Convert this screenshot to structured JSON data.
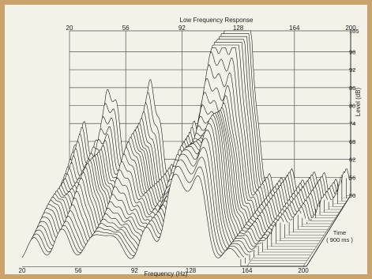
{
  "chart_data": {
    "type": "waterfall",
    "title": "Low Frequency Response",
    "xlabel": "Frequency (Hz)",
    "ylabel": "Level (dB)",
    "zlabel": "Time",
    "zsublabel": "( 900 ms )",
    "x_ticks": [
      20,
      56,
      92,
      128,
      164,
      200
    ],
    "y_ticks": [
      105,
      98,
      92,
      86,
      80,
      74,
      68,
      62,
      56,
      50
    ],
    "xlim": [
      20,
      200
    ],
    "ylim": [
      50,
      105
    ],
    "time_range_ms": [
      0,
      900
    ],
    "slices": 26,
    "peaks": [
      {
        "freq": 28,
        "level": 70
      },
      {
        "freq": 46,
        "level": 85
      },
      {
        "freq": 72,
        "level": 88
      },
      {
        "freq": 100,
        "level": 78
      },
      {
        "freq": 116,
        "level": 95
      },
      {
        "freq": 126,
        "level": 98
      },
      {
        "freq": 134,
        "level": 101
      }
    ],
    "grid": true,
    "colors": {
      "frame": "#c9a36b",
      "background": "#f4f1e8",
      "ink": "#1a1a1a",
      "grid": "#555555"
    }
  }
}
